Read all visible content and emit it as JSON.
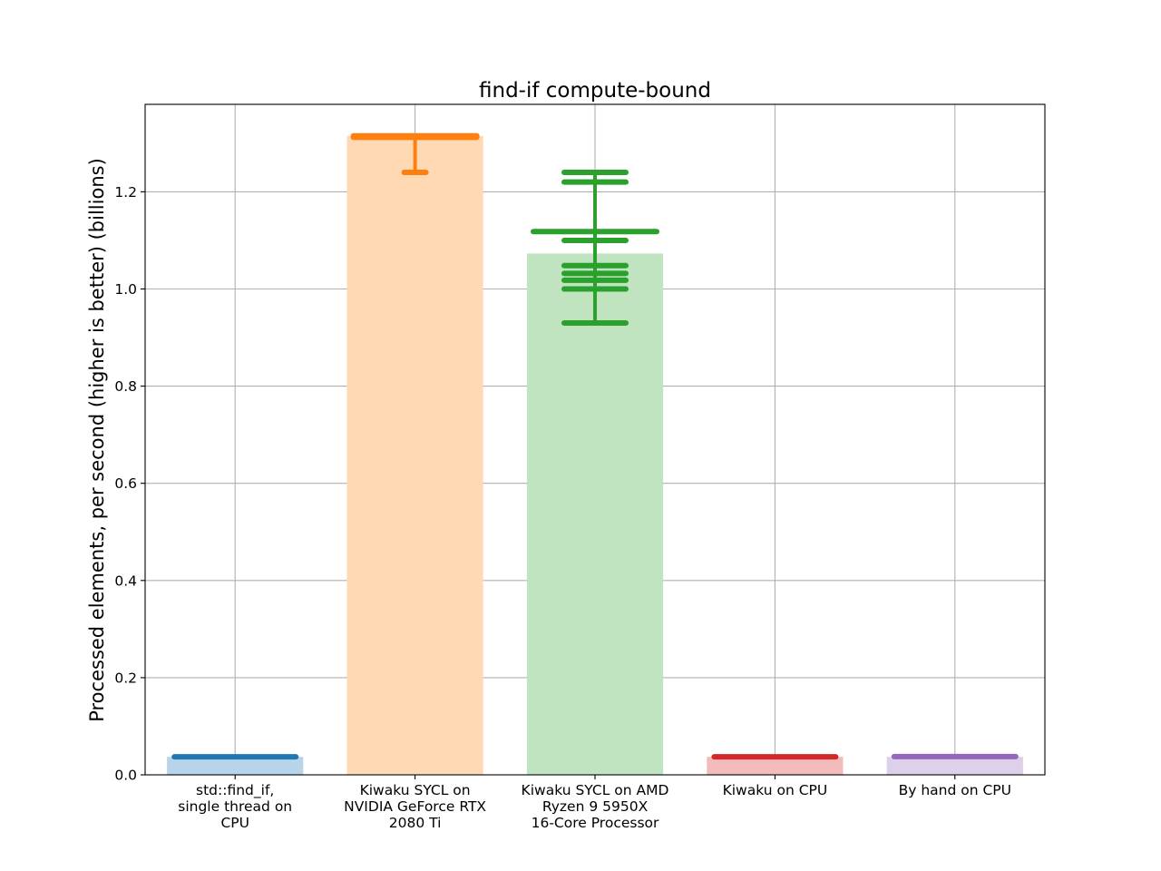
{
  "chart_data": {
    "type": "bar",
    "title": "find-if compute-bound",
    "ylabel": "Processed elements, per second (higher is better) (billions)",
    "xlabel": "",
    "ylim": [
      0,
      1.38
    ],
    "yticks": [
      "0.0",
      "0.2",
      "0.4",
      "0.6",
      "0.8",
      "1.0",
      "1.2"
    ],
    "grid": true,
    "categories": [
      [
        "std::find_if,",
        "single thread on",
        "CPU"
      ],
      [
        "Kiwaku SYCL on",
        "NVIDIA GeForce RTX",
        "2080 Ti"
      ],
      [
        "Kiwaku SYCL on AMD",
        "Ryzen 9 5950X",
        "16-Core Processor"
      ],
      [
        "Kiwaku on CPU"
      ],
      [
        "By hand on CPU"
      ]
    ],
    "values": [
      0.037,
      1.315,
      1.073,
      0.037,
      0.037
    ],
    "violins": [
      {
        "min": 0.036,
        "max": 0.038,
        "samples": [
          0.037
        ]
      },
      {
        "min": 1.24,
        "max": 1.315,
        "samples": [
          1.315,
          1.312,
          1.24
        ]
      },
      {
        "min": 0.93,
        "max": 1.24,
        "samples": [
          1.24,
          1.22,
          1.118,
          1.1,
          1.048,
          1.032,
          1.018,
          1.0,
          0.93
        ]
      },
      {
        "min": 0.036,
        "max": 0.038,
        "samples": [
          0.037
        ]
      },
      {
        "min": 0.037,
        "max": 0.038,
        "samples": [
          0.0375
        ]
      }
    ],
    "colors": [
      "#1f77b4",
      "#ff7f0e",
      "#2ca02c",
      "#d62728",
      "#9467bd"
    ],
    "bar_colors": [
      "#b8d4ea",
      "#ffd9b4",
      "#c0e4c0",
      "#f2bcbc",
      "#dcd0eb"
    ]
  }
}
